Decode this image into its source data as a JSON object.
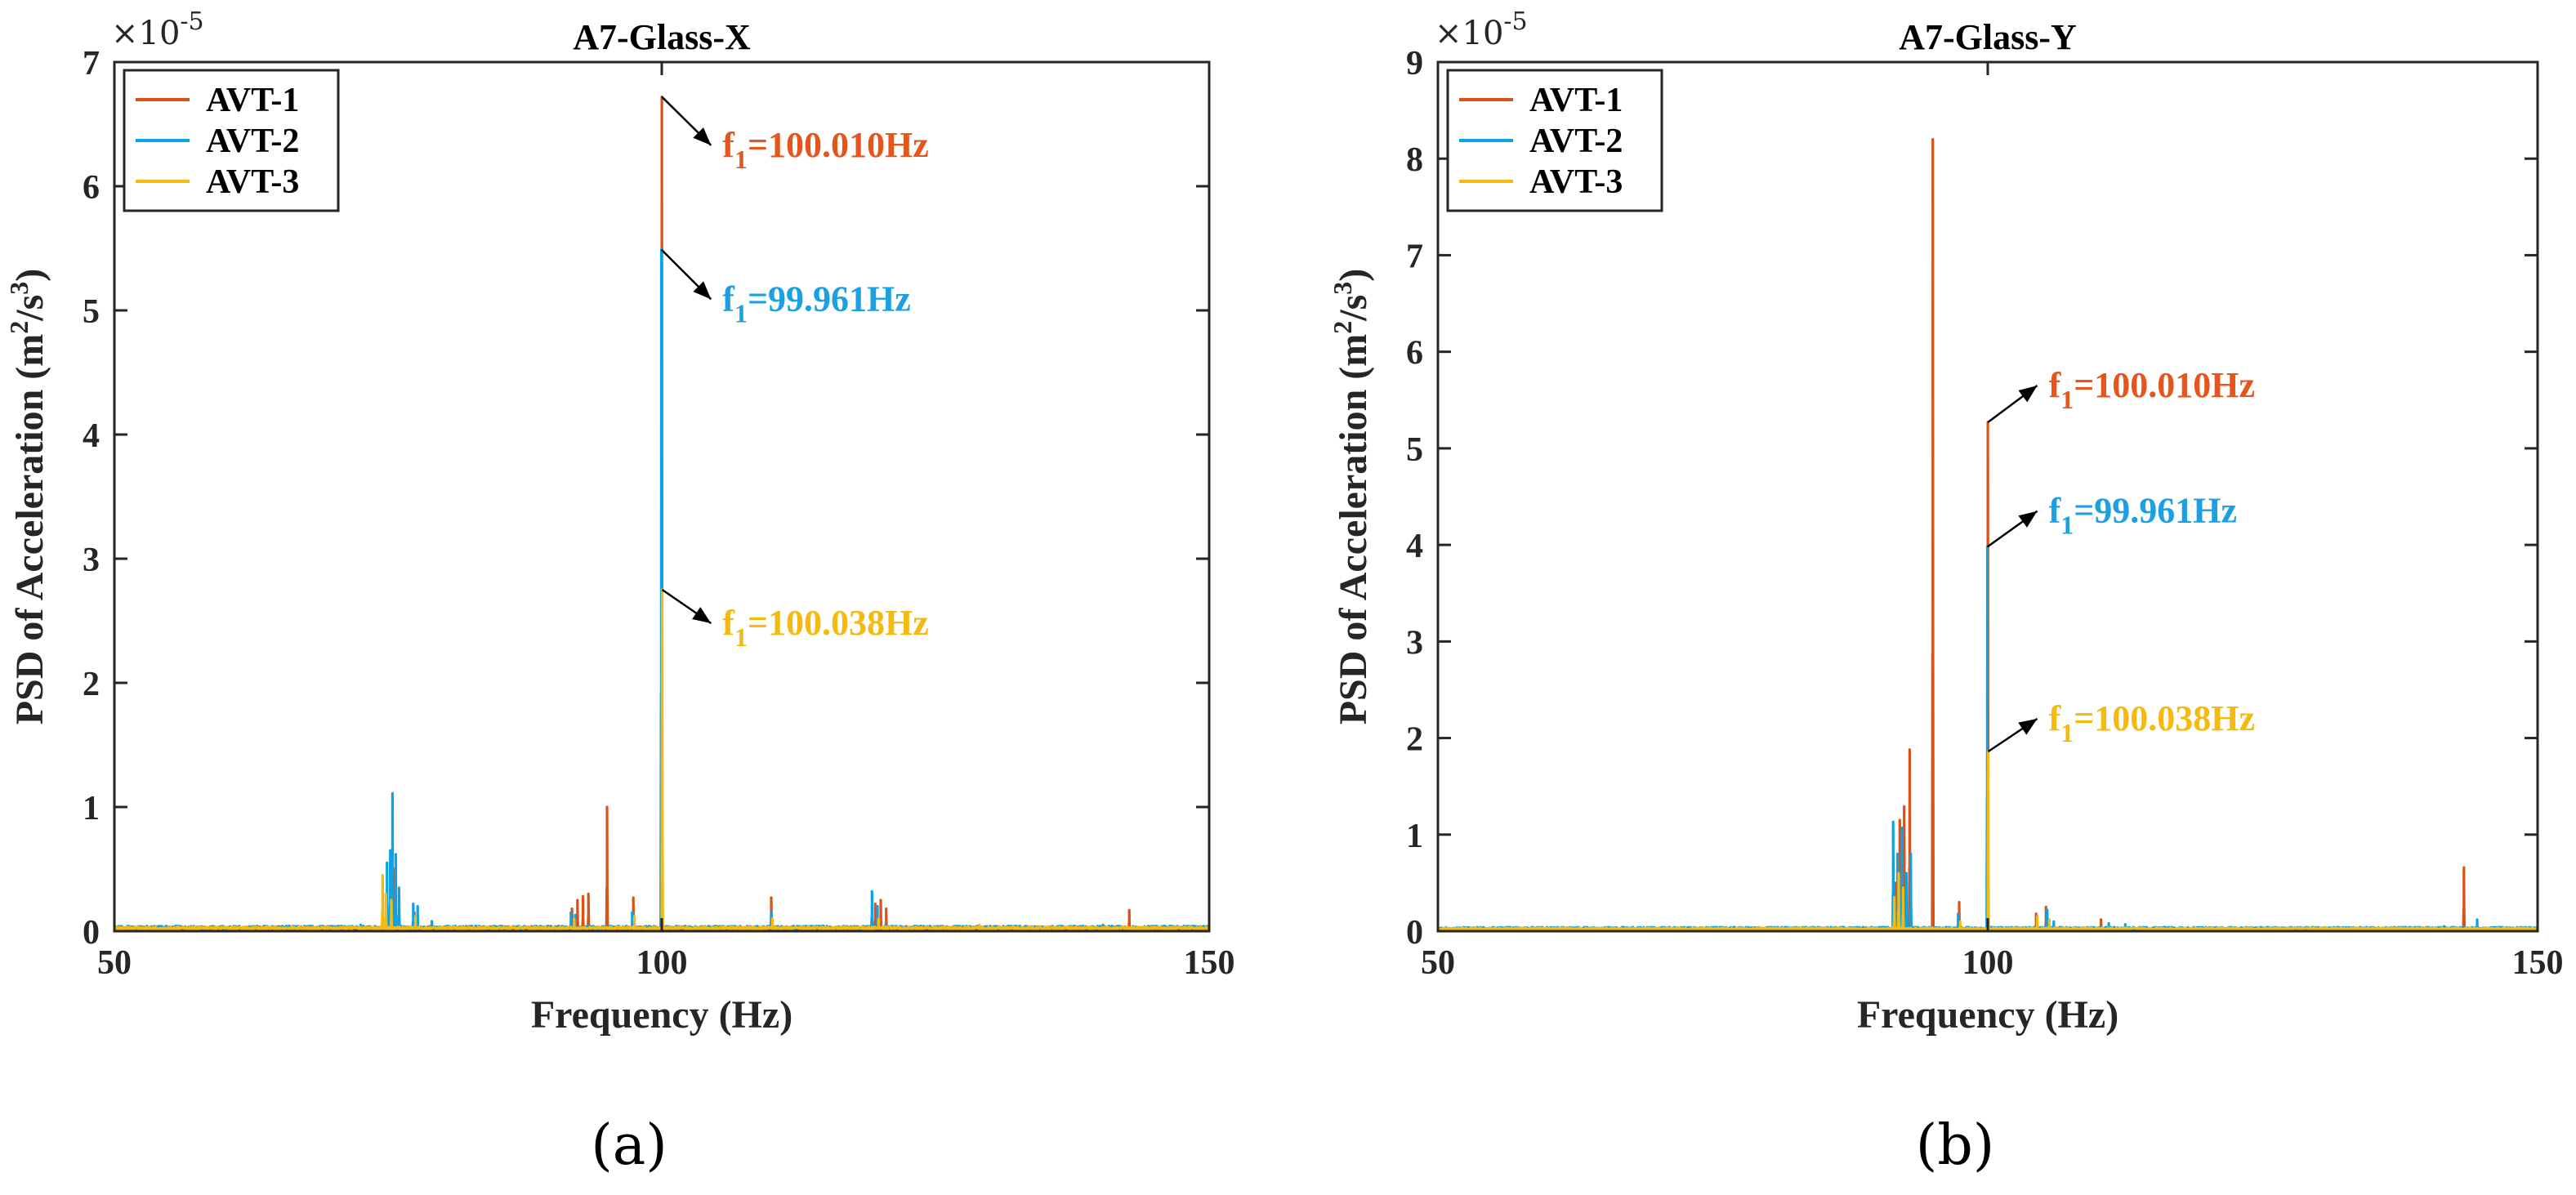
{
  "chart_data": [
    {
      "id": "a",
      "type": "line",
      "panel_label": "(a)",
      "title": "A7-Glass-X",
      "xlabel": "Frequency (Hz)",
      "ylabel": "PSD of Acceleration (m²/s³)",
      "ylabel_parts": [
        "PSD of Acceleration (m",
        "2",
        "/s",
        "3",
        ")"
      ],
      "y_exponent": "×10",
      "y_exponent_power": "-5",
      "xlim": [
        50,
        150
      ],
      "ylim": [
        0,
        7
      ],
      "xticks": [
        50,
        100,
        150
      ],
      "xtick_labels": [
        "50",
        "100",
        "150"
      ],
      "yticks": [
        0,
        1,
        2,
        3,
        4,
        5,
        6,
        7
      ],
      "ytick_labels": [
        "0",
        "1",
        "2",
        "3",
        "4",
        "5",
        "6",
        "7"
      ],
      "legend": {
        "placement": "top-left",
        "entries": [
          "AVT-1",
          "AVT-2",
          "AVT-3"
        ]
      },
      "series": [
        {
          "name": "AVT-1",
          "color": "#D95319",
          "baseline": 0.02,
          "peaks": [
            [
              75.2,
              0.55
            ],
            [
              75.6,
              0.5
            ],
            [
              77.4,
              0.15
            ],
            [
              91.8,
              0.18
            ],
            [
              92.3,
              0.25
            ],
            [
              92.8,
              0.28
            ],
            [
              93.3,
              0.3
            ],
            [
              95.0,
              1.0
            ],
            [
              97.4,
              0.27
            ],
            [
              100.01,
              6.72
            ],
            [
              110.0,
              0.27
            ],
            [
              119.5,
              0.22
            ],
            [
              120.0,
              0.25
            ],
            [
              120.5,
              0.18
            ],
            [
              142.7,
              0.17
            ]
          ]
        },
        {
          "name": "AVT-2",
          "color": "#0CA2E6",
          "baseline": 0.03,
          "peaks": [
            [
              72.5,
              0.05
            ],
            [
              74.9,
              0.55
            ],
            [
              75.2,
              0.65
            ],
            [
              75.4,
              1.11
            ],
            [
              75.7,
              0.62
            ],
            [
              76.0,
              0.35
            ],
            [
              77.3,
              0.22
            ],
            [
              77.7,
              0.2
            ],
            [
              79.0,
              0.08
            ],
            [
              91.7,
              0.15
            ],
            [
              92.1,
              0.13
            ],
            [
              97.3,
              0.15
            ],
            [
              99.961,
              5.49
            ],
            [
              110.0,
              0.15
            ],
            [
              119.2,
              0.32
            ],
            [
              119.7,
              0.2
            ],
            [
              140.3,
              0.05
            ],
            [
              145.2,
              0.04
            ]
          ]
        },
        {
          "name": "AVT-3",
          "color": "#F5BA10",
          "baseline": 0.025,
          "peaks": [
            [
              74.5,
              0.45
            ],
            [
              74.8,
              0.3
            ],
            [
              75.3,
              0.25
            ],
            [
              77.5,
              0.12
            ],
            [
              92.0,
              0.1
            ],
            [
              97.5,
              0.12
            ],
            [
              100.038,
              2.75
            ],
            [
              110.1,
              0.1
            ],
            [
              119.8,
              0.1
            ],
            [
              129.0,
              0.05
            ]
          ]
        }
      ],
      "annotations": [
        {
          "series": "AVT-1",
          "x": 100.01,
          "y": 6.72,
          "text_to": [
            104.5,
            6.33
          ],
          "label": "f",
          "sub": "1",
          "value": "=100.010Hz",
          "color": "#E5561E"
        },
        {
          "series": "AVT-2",
          "x": 99.961,
          "y": 5.49,
          "text_to": [
            104.5,
            5.09
          ],
          "label": "f",
          "sub": "1",
          "value": "=99.961Hz",
          "color": "#1BA1E2"
        },
        {
          "series": "AVT-3",
          "x": 100.038,
          "y": 2.75,
          "text_to": [
            104.5,
            2.48
          ],
          "label": "f",
          "sub": "1",
          "value": "=100.038Hz",
          "color": "#F5BA10"
        }
      ]
    },
    {
      "id": "b",
      "type": "line",
      "panel_label": "(b)",
      "title": "A7-Glass-Y",
      "xlabel": "Frequency (Hz)",
      "ylabel": "PSD of Acceleration (m²/s³)",
      "ylabel_parts": [
        "PSD of Acceleration (m",
        "2",
        "/s",
        "3",
        ")"
      ],
      "y_exponent": "×10",
      "y_exponent_power": "-5",
      "xlim": [
        50,
        150
      ],
      "ylim": [
        0,
        9
      ],
      "xticks": [
        50,
        100,
        150
      ],
      "xtick_labels": [
        "50",
        "100",
        "150"
      ],
      "yticks": [
        0,
        1,
        2,
        3,
        4,
        5,
        6,
        7,
        8,
        9
      ],
      "ytick_labels": [
        "0",
        "1",
        "2",
        "3",
        "4",
        "5",
        "6",
        "7",
        "8",
        "9"
      ],
      "legend": {
        "placement": "top-left",
        "entries": [
          "AVT-1",
          "AVT-2",
          "AVT-3"
        ]
      },
      "series": [
        {
          "name": "AVT-1",
          "color": "#D95319",
          "baseline": 0.02,
          "peaks": [
            [
              91.6,
              0.5
            ],
            [
              92.0,
              1.15
            ],
            [
              92.4,
              1.29
            ],
            [
              92.9,
              1.88
            ],
            [
              95.0,
              8.2
            ],
            [
              97.4,
              0.3
            ],
            [
              100.01,
              5.27
            ],
            [
              104.4,
              0.18
            ],
            [
              105.3,
              0.25
            ],
            [
              110.3,
              0.12
            ],
            [
              143.3,
              0.66
            ]
          ]
        },
        {
          "name": "AVT-2",
          "color": "#0CA2E6",
          "baseline": 0.03,
          "peaks": [
            [
              77.5,
              0.04
            ],
            [
              91.4,
              1.13
            ],
            [
              91.8,
              0.8
            ],
            [
              92.2,
              1.07
            ],
            [
              92.6,
              0.6
            ],
            [
              93.0,
              0.8
            ],
            [
              97.3,
              0.18
            ],
            [
              99.961,
              3.98
            ],
            [
              105.4,
              0.22
            ],
            [
              106.0,
              0.1
            ],
            [
              111.0,
              0.08
            ],
            [
              112.5,
              0.07
            ],
            [
              141.5,
              0.05
            ],
            [
              144.5,
              0.12
            ]
          ]
        },
        {
          "name": "AVT-3",
          "color": "#F5BA10",
          "baseline": 0.025,
          "peaks": [
            [
              91.5,
              0.35
            ],
            [
              91.9,
              0.6
            ],
            [
              92.3,
              0.45
            ],
            [
              97.5,
              0.1
            ],
            [
              100.038,
              1.86
            ],
            [
              104.5,
              0.15
            ],
            [
              105.6,
              0.12
            ]
          ]
        }
      ],
      "annotations": [
        {
          "series": "AVT-1",
          "x": 100.01,
          "y": 5.27,
          "text_to": [
            104.5,
            5.65
          ],
          "label": "f",
          "sub": "1",
          "value": "=100.010Hz",
          "color": "#E5561E"
        },
        {
          "series": "AVT-2",
          "x": 99.961,
          "y": 3.98,
          "text_to": [
            104.5,
            4.35
          ],
          "label": "f",
          "sub": "1",
          "value": "=99.961Hz",
          "color": "#1BA1E2"
        },
        {
          "series": "AVT-3",
          "x": 100.038,
          "y": 1.86,
          "text_to": [
            104.5,
            2.2
          ],
          "label": "f",
          "sub": "1",
          "value": "=100.038Hz",
          "color": "#F5BA10"
        }
      ]
    }
  ]
}
